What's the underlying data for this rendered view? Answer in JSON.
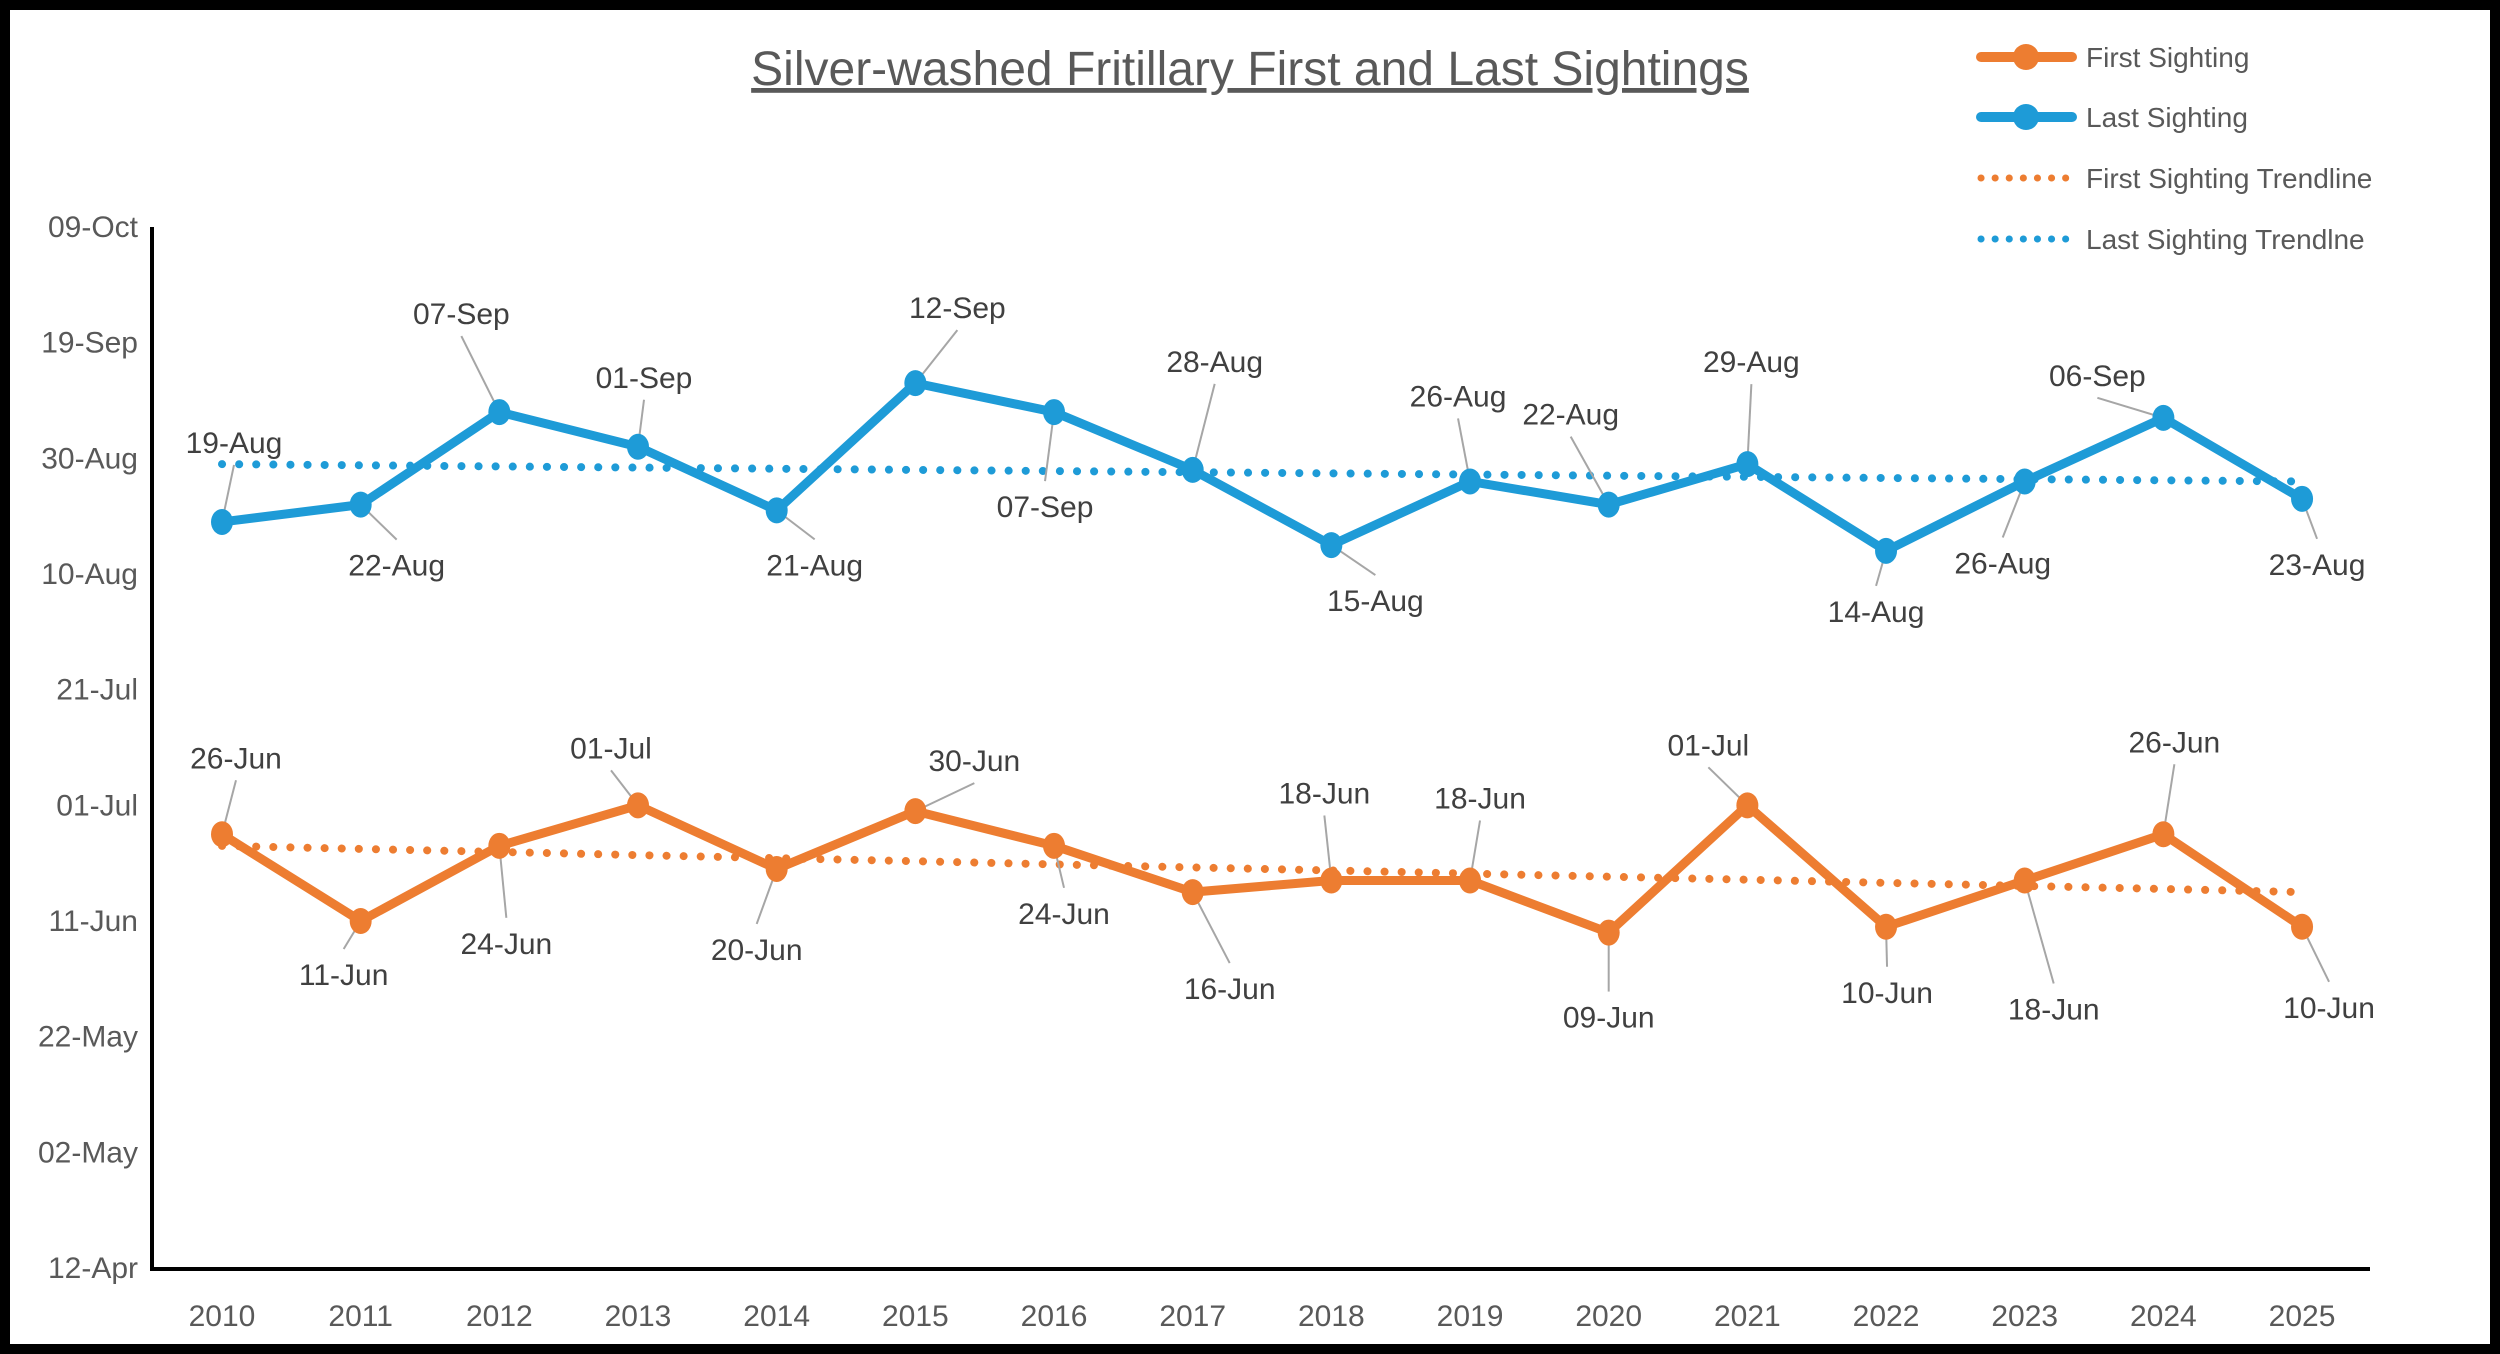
{
  "title": "Silver-washed Fritillary First and Last Sightings",
  "colors": {
    "first_sighting": "#ED7D31",
    "last_sighting": "#1E9BD7",
    "axis_text": "#595959",
    "data_label_text": "#404040",
    "leader_line": "#A6A6A6",
    "axis_line": "#000000",
    "frame": "#000000",
    "background": "#FFFFFF"
  },
  "legend": [
    {
      "label": "First Sighting",
      "style": "solid-marker",
      "color_key": "first_sighting"
    },
    {
      "label": "Last Sighting",
      "style": "solid-marker",
      "color_key": "last_sighting"
    },
    {
      "label": "First Sighting Trendline",
      "style": "dotted",
      "color_key": "first_sighting"
    },
    {
      "label": "Last Sighting Trendlne",
      "style": "dotted",
      "color_key": "last_sighting"
    }
  ],
  "chart_data": {
    "type": "line",
    "title": "Silver-washed Fritillary First and Last Sightings",
    "categories": [
      "2010",
      "2011",
      "2012",
      "2013",
      "2014",
      "2015",
      "2016",
      "2017",
      "2018",
      "2019",
      "2020",
      "2021",
      "2022",
      "2023",
      "2024",
      "2025"
    ],
    "y_axis_ticks": [
      "12-Apr",
      "02-May",
      "22-May",
      "11-Jun",
      "01-Jul",
      "21-Jul",
      "10-Aug",
      "30-Aug",
      "19-Sep",
      "09-Oct"
    ],
    "y_axis_range": {
      "min": "12-Apr",
      "max": "09-Oct",
      "interval_days": 20
    },
    "grid": "off",
    "legend_position": "top-right",
    "series": [
      {
        "name": "First Sighting",
        "color_key": "first_sighting",
        "values": [
          "26-Jun",
          "11-Jun",
          "24-Jun",
          "01-Jul",
          "20-Jun",
          "30-Jun",
          "24-Jun",
          "16-Jun",
          "18-Jun",
          "18-Jun",
          "09-Jun",
          "01-Jul",
          "10-Jun",
          "18-Jun",
          "26-Jun",
          "10-Jun"
        ],
        "label_offsets": [
          [
            14,
            -76
          ],
          [
            -17,
            54
          ],
          [
            7,
            98
          ],
          [
            -27,
            -57
          ],
          [
            -20,
            81
          ],
          [
            59,
            -50
          ],
          [
            10,
            68
          ],
          [
            37,
            97
          ],
          [
            -7,
            -87
          ],
          [
            10,
            -82
          ],
          [
            0,
            85
          ],
          [
            -39,
            -60
          ],
          [
            1,
            66
          ],
          [
            29,
            129
          ],
          [
            11,
            -92
          ],
          [
            27,
            81
          ]
        ]
      },
      {
        "name": "Last Sighting",
        "color_key": "last_sighting",
        "values": [
          "19-Aug",
          "22-Aug",
          "07-Sep",
          "01-Sep",
          "21-Aug",
          "12-Sep",
          "07-Sep",
          "28-Aug",
          "15-Aug",
          "26-Aug",
          "22-Aug",
          "29-Aug",
          "14-Aug",
          "26-Aug",
          "06-Sep",
          "23-Aug"
        ],
        "label_offsets": [
          [
            12,
            -79
          ],
          [
            36,
            61
          ],
          [
            -38,
            -98
          ],
          [
            6,
            -69
          ],
          [
            38,
            55
          ],
          [
            42,
            -75
          ],
          [
            -9,
            95
          ],
          [
            22,
            -108
          ],
          [
            44,
            56
          ],
          [
            -12,
            -85
          ],
          [
            -38,
            -90
          ],
          [
            4,
            -102
          ],
          [
            -10,
            61
          ],
          [
            -22,
            82
          ],
          [
            -66,
            -42
          ],
          [
            15,
            66
          ]
        ]
      }
    ],
    "trendlines": [
      {
        "name": "First Sighting Trendline",
        "color_key": "first_sighting",
        "start": "24-Jun",
        "end": "16-Jun"
      },
      {
        "name": "Last Sighting Trendlne",
        "color_key": "last_sighting",
        "start": "29-Aug",
        "end": "26-Aug"
      }
    ]
  }
}
